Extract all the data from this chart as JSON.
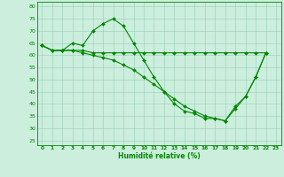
{
  "background_color": "#cceedd",
  "grid_color": "#99ccbb",
  "line_color": "#008800",
  "marker_color": "#008800",
  "xlabel": "Humidité relative (%)",
  "xlabel_color": "#008800",
  "ylim": [
    23,
    82
  ],
  "xlim": [
    -0.5,
    23.5
  ],
  "yticks": [
    25,
    30,
    35,
    40,
    45,
    50,
    55,
    60,
    65,
    70,
    75,
    80
  ],
  "xticks": [
    0,
    1,
    2,
    3,
    4,
    5,
    6,
    7,
    8,
    9,
    10,
    11,
    12,
    13,
    14,
    15,
    16,
    17,
    18,
    19,
    20,
    21,
    22,
    23
  ],
  "series": [
    [
      64,
      62,
      62,
      65,
      64,
      70,
      73,
      75,
      72,
      65,
      58,
      51,
      45,
      40,
      37,
      36,
      34,
      34,
      33,
      39,
      43,
      51,
      61
    ],
    [
      64,
      62,
      62,
      62,
      62,
      61,
      61,
      61,
      61,
      61,
      61,
      61,
      61,
      61,
      61,
      61,
      61,
      61,
      61,
      61,
      61,
      61,
      61
    ],
    [
      64,
      62,
      62,
      62,
      61,
      60,
      59,
      58,
      56,
      54,
      51,
      48,
      45,
      42,
      39,
      37,
      35,
      34,
      33,
      38,
      43,
      51,
      61
    ]
  ],
  "x_range": [
    0,
    1,
    2,
    3,
    4,
    5,
    6,
    7,
    8,
    9,
    10,
    11,
    12,
    13,
    14,
    15,
    16,
    17,
    18,
    19,
    20,
    21,
    22
  ]
}
